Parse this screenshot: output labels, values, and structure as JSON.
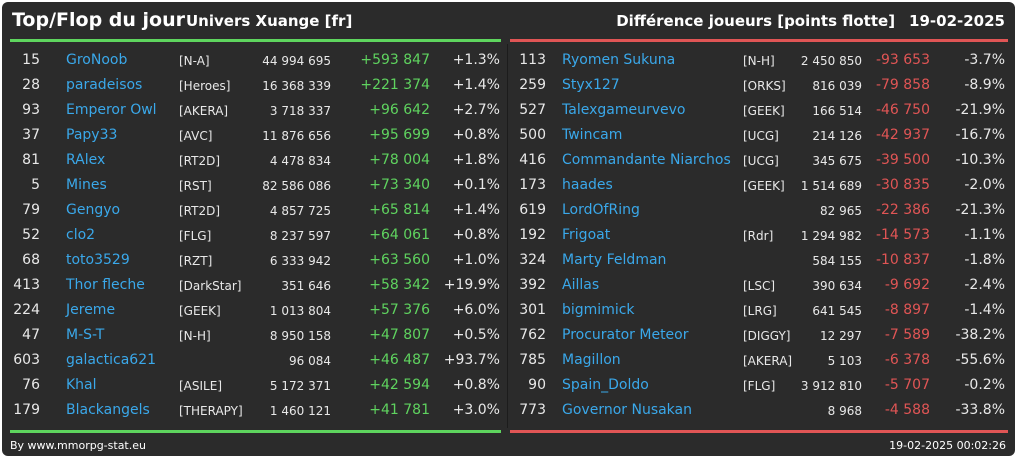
{
  "header": {
    "title": "Top/Flop du jour",
    "universe": "Univers Xuange [fr]",
    "metric": "Différence joueurs [points flotte]",
    "date": "19-02-2025"
  },
  "colors": {
    "gain": "#5fd35f",
    "loss": "#e05555",
    "player_name": "#3aa8ea",
    "background": "#2b2b2b"
  },
  "top": [
    {
      "rank": "15",
      "name": "GroNoob",
      "alliance": "[N-A]",
      "points": "44 994 695",
      "diff": "+593 847",
      "pct": "+1.3%"
    },
    {
      "rank": "28",
      "name": "paradeisos",
      "alliance": "[Heroes]",
      "points": "16 368 339",
      "diff": "+221 374",
      "pct": "+1.4%"
    },
    {
      "rank": "93",
      "name": "Emperor Owl",
      "alliance": "[AKERA]",
      "points": "3 718 337",
      "diff": "+96 642",
      "pct": "+2.7%"
    },
    {
      "rank": "37",
      "name": "Papy33",
      "alliance": "[AVC]",
      "points": "11 876 656",
      "diff": "+95 699",
      "pct": "+0.8%"
    },
    {
      "rank": "81",
      "name": "RAlex",
      "alliance": "[RT2D]",
      "points": "4 478 834",
      "diff": "+78 004",
      "pct": "+1.8%"
    },
    {
      "rank": "5",
      "name": "Mines",
      "alliance": "[RST]",
      "points": "82 586 086",
      "diff": "+73 340",
      "pct": "+0.1%"
    },
    {
      "rank": "79",
      "name": "Gengyo",
      "alliance": "[RT2D]",
      "points": "4 857 725",
      "diff": "+65 814",
      "pct": "+1.4%"
    },
    {
      "rank": "52",
      "name": "clo2",
      "alliance": "[FLG]",
      "points": "8 237 597",
      "diff": "+64 061",
      "pct": "+0.8%"
    },
    {
      "rank": "68",
      "name": "toto3529",
      "alliance": "[RZT]",
      "points": "6 333 942",
      "diff": "+63 560",
      "pct": "+1.0%"
    },
    {
      "rank": "413",
      "name": "Thor fleche",
      "alliance": "[DarkStar]",
      "points": "351 646",
      "diff": "+58 342",
      "pct": "+19.9%"
    },
    {
      "rank": "224",
      "name": "Jereme",
      "alliance": "[GEEK]",
      "points": "1 013 804",
      "diff": "+57 376",
      "pct": "+6.0%"
    },
    {
      "rank": "47",
      "name": "M-S-T",
      "alliance": "[N-H]",
      "points": "8 950 158",
      "diff": "+47 807",
      "pct": "+0.5%"
    },
    {
      "rank": "603",
      "name": "galactica621",
      "alliance": "",
      "points": "96 084",
      "diff": "+46 487",
      "pct": "+93.7%"
    },
    {
      "rank": "76",
      "name": "Khal",
      "alliance": "[ASILE]",
      "points": "5 172 371",
      "diff": "+42 594",
      "pct": "+0.8%"
    },
    {
      "rank": "179",
      "name": "Blackangels",
      "alliance": "[THERAPY]",
      "points": "1 460 121",
      "diff": "+41 781",
      "pct": "+3.0%"
    }
  ],
  "flop": [
    {
      "rank": "113",
      "name": "Ryomen Sukuna",
      "alliance": "[N-H]",
      "points": "2 450 850",
      "diff": "-93 653",
      "pct": "-3.7%"
    },
    {
      "rank": "259",
      "name": "Styx127",
      "alliance": "[ORKS]",
      "points": "816 039",
      "diff": "-79 858",
      "pct": "-8.9%"
    },
    {
      "rank": "527",
      "name": "Talexgameurvevo",
      "alliance": "[GEEK]",
      "points": "166 514",
      "diff": "-46 750",
      "pct": "-21.9%"
    },
    {
      "rank": "500",
      "name": "Twincam",
      "alliance": "[UCG]",
      "points": "214 126",
      "diff": "-42 937",
      "pct": "-16.7%"
    },
    {
      "rank": "416",
      "name": "Commandante Niarchos",
      "alliance": "[UCG]",
      "points": "345 675",
      "diff": "-39 500",
      "pct": "-10.3%"
    },
    {
      "rank": "173",
      "name": "haades",
      "alliance": "[GEEK]",
      "points": "1 514 689",
      "diff": "-30 835",
      "pct": "-2.0%"
    },
    {
      "rank": "619",
      "name": "LordOfRing",
      "alliance": "",
      "points": "82 965",
      "diff": "-22 386",
      "pct": "-21.3%"
    },
    {
      "rank": "192",
      "name": "Frigoat",
      "alliance": "[Rdr]",
      "points": "1 294 982",
      "diff": "-14 573",
      "pct": "-1.1%"
    },
    {
      "rank": "324",
      "name": "Marty Feldman",
      "alliance": "",
      "points": "584 155",
      "diff": "-10 837",
      "pct": "-1.8%"
    },
    {
      "rank": "392",
      "name": "Aillas",
      "alliance": "[LSC]",
      "points": "390 634",
      "diff": "-9 692",
      "pct": "-2.4%"
    },
    {
      "rank": "301",
      "name": "bigmimick",
      "alliance": "[LRG]",
      "points": "641 545",
      "diff": "-8 897",
      "pct": "-1.4%"
    },
    {
      "rank": "762",
      "name": "Procurator Meteor",
      "alliance": "[DIGGY]",
      "points": "12 297",
      "diff": "-7 589",
      "pct": "-38.2%"
    },
    {
      "rank": "785",
      "name": "Magillon",
      "alliance": "[AKERA]",
      "points": "5 103",
      "diff": "-6 378",
      "pct": "-55.6%"
    },
    {
      "rank": "90",
      "name": "Spain_Doldo",
      "alliance": "[FLG]",
      "points": "3 912 810",
      "diff": "-5 707",
      "pct": "-0.2%"
    },
    {
      "rank": "773",
      "name": "Governor Nusakan",
      "alliance": "",
      "points": "8 968",
      "diff": "-4 588",
      "pct": "-33.8%"
    }
  ],
  "footer": {
    "credit": "By www.mmorpg-stat.eu",
    "timestamp": "19-02-2025 00:02:26"
  }
}
